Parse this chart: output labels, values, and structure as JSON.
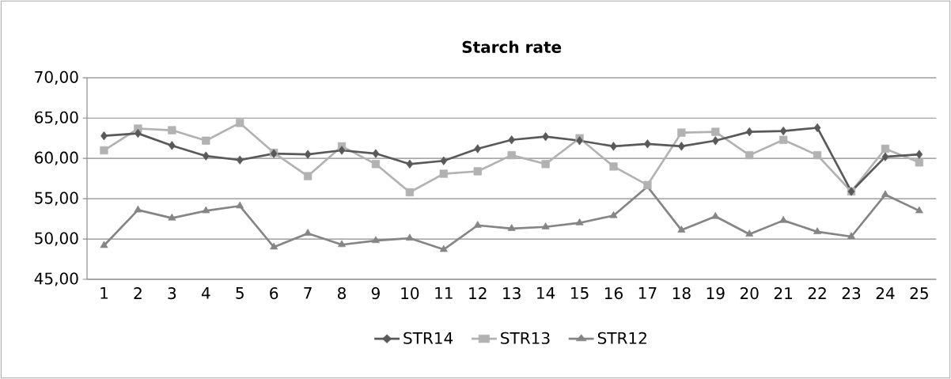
{
  "chart_data": {
    "type": "line",
    "title": "Starch rate",
    "categories": [
      "1",
      "2",
      "3",
      "4",
      "5",
      "6",
      "7",
      "8",
      "9",
      "10",
      "11",
      "12",
      "13",
      "14",
      "15",
      "16",
      "17",
      "18",
      "19",
      "20",
      "21",
      "22",
      "23",
      "24",
      "25"
    ],
    "series": [
      {
        "name": "STR14",
        "color": "#595959",
        "marker": "diamond",
        "values": [
          62.8,
          63.1,
          61.6,
          60.3,
          59.8,
          60.6,
          60.5,
          61.0,
          60.6,
          59.3,
          59.7,
          61.2,
          62.3,
          62.7,
          62.2,
          61.5,
          61.8,
          61.5,
          62.2,
          63.3,
          63.4,
          63.8,
          55.9,
          60.2,
          60.5
        ]
      },
      {
        "name": "STR13",
        "color": "#b2b2b2",
        "marker": "square",
        "values": [
          61.0,
          63.7,
          63.5,
          62.2,
          64.4,
          60.7,
          57.8,
          61.5,
          59.3,
          55.8,
          58.1,
          58.4,
          60.4,
          59.3,
          62.5,
          59.0,
          56.7,
          63.2,
          63.3,
          60.4,
          62.3,
          60.4,
          55.9,
          61.2,
          59.5
        ]
      },
      {
        "name": "STR12",
        "color": "#858585",
        "marker": "triangle",
        "values": [
          49.2,
          53.6,
          52.6,
          53.5,
          54.1,
          49.0,
          50.7,
          49.3,
          49.8,
          50.1,
          48.7,
          51.7,
          51.3,
          51.5,
          52.0,
          52.9,
          56.5,
          51.1,
          52.8,
          50.6,
          52.3,
          50.9,
          50.3,
          55.5,
          53.5
        ]
      }
    ],
    "ylim": [
      45,
      70
    ],
    "yticks": [
      {
        "value": 45,
        "label": "45,00"
      },
      {
        "value": 50,
        "label": "50,00"
      },
      {
        "value": 55,
        "label": "55,00"
      },
      {
        "value": 60,
        "label": "60,00"
      },
      {
        "value": 65,
        "label": "65,00"
      },
      {
        "value": 70,
        "label": "70,00"
      }
    ],
    "grid": "y",
    "legend": "bottom"
  }
}
